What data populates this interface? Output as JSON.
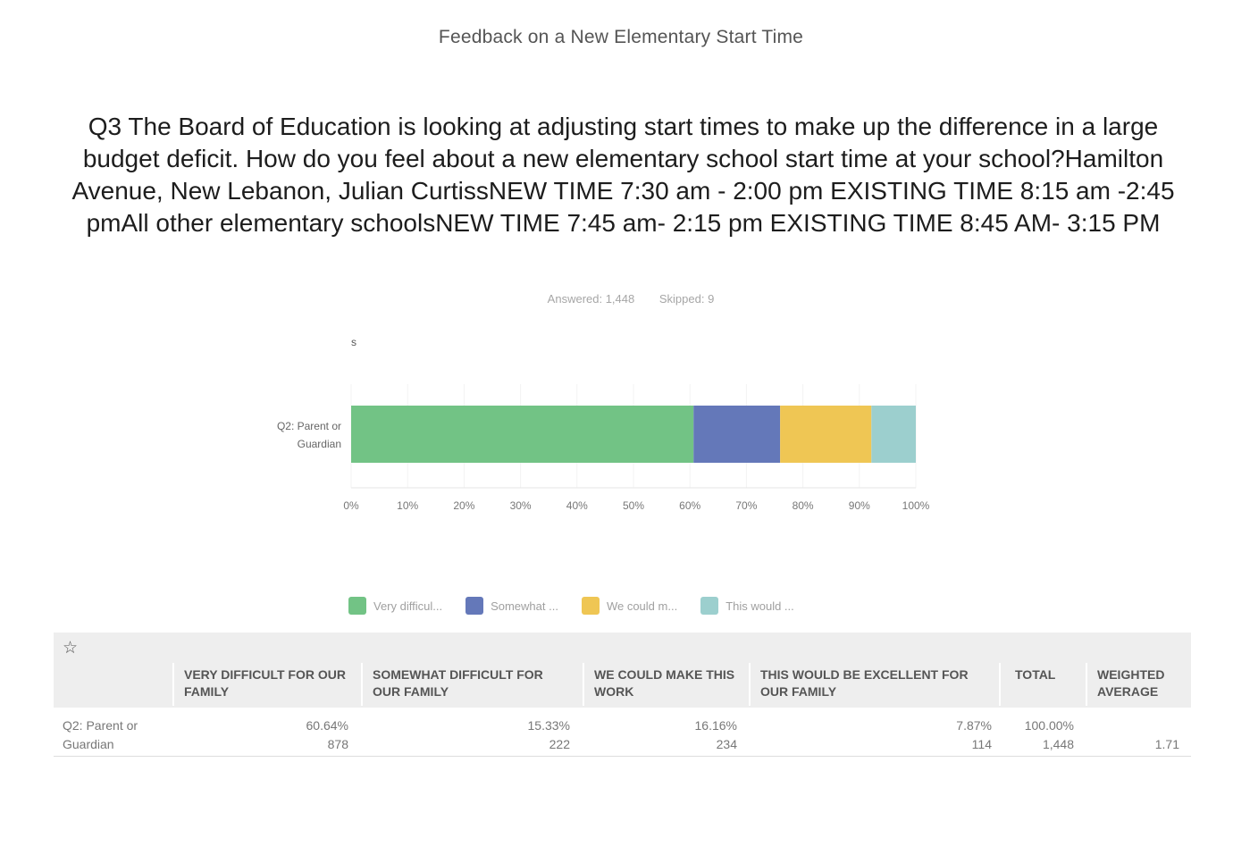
{
  "survey_title": "Feedback on a New Elementary Start Time",
  "question": "Q3 The Board of Education is looking at adjusting start times to make up the difference in a large budget deficit. How do you feel about a new elementary school start time at your school?Hamilton Avenue, New Lebanon, Julian CurtissNEW TIME 7:30 am - 2:00 pm EXISTING TIME 8:15 am -2:45 pmAll other elementary schoolsNEW TIME 7:45 am- 2:15 pm EXISTING TIME 8:45 AM- 3:15 PM",
  "stats": {
    "answered": "Answered: 1,448",
    "skipped": "Skipped: 9"
  },
  "chart_data": {
    "type": "bar",
    "orientation": "horizontal",
    "stacked": true,
    "marker_label": "s",
    "categories": [
      "Q2: Parent or Guardian"
    ],
    "x_ticks": [
      "0%",
      "10%",
      "20%",
      "30%",
      "40%",
      "50%",
      "60%",
      "70%",
      "80%",
      "90%",
      "100%"
    ],
    "xlim": [
      0,
      100
    ],
    "series": [
      {
        "name": "Very difficul...",
        "values": [
          60.64
        ],
        "color": "#72c385"
      },
      {
        "name": "Somewhat ...",
        "values": [
          15.33
        ],
        "color": "#6478b9"
      },
      {
        "name": "We could m...",
        "values": [
          16.16
        ],
        "color": "#efc654"
      },
      {
        "name": "This would ...",
        "values": [
          7.87
        ],
        "color": "#9ccfce"
      }
    ],
    "legend_position": "bottom"
  },
  "table": {
    "star_icon": "star-icon",
    "headers": [
      "VERY DIFFICULT FOR OUR FAMILY",
      "SOMEWHAT DIFFICULT FOR OUR FAMILY",
      "WE COULD MAKE THIS WORK",
      "THIS WOULD BE EXCELLENT FOR OUR FAMILY",
      "TOTAL",
      "WEIGHTED AVERAGE"
    ],
    "row": {
      "label": "Q2: Parent or Guardian",
      "percents": [
        "60.64%",
        "15.33%",
        "16.16%",
        "7.87%",
        "100.00%"
      ],
      "counts": [
        "878",
        "222",
        "234",
        "114",
        "1,448"
      ],
      "weighted_average": "1.71"
    }
  }
}
